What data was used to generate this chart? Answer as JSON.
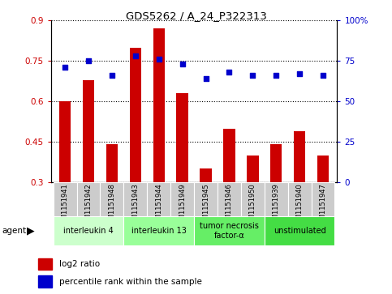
{
  "title": "GDS5262 / A_24_P322313",
  "samples": [
    "GSM1151941",
    "GSM1151942",
    "GSM1151948",
    "GSM1151943",
    "GSM1151944",
    "GSM1151949",
    "GSM1151945",
    "GSM1151946",
    "GSM1151950",
    "GSM1151939",
    "GSM1151940",
    "GSM1151947"
  ],
  "log2_ratio": [
    0.6,
    0.68,
    0.44,
    0.8,
    0.87,
    0.63,
    0.35,
    0.5,
    0.4,
    0.44,
    0.49,
    0.4
  ],
  "percentile": [
    71,
    75,
    66,
    78,
    76,
    73,
    64,
    68,
    66,
    66,
    67,
    66
  ],
  "ylim_left": [
    0.3,
    0.9
  ],
  "ylim_right": [
    0,
    100
  ],
  "yticks_left": [
    0.3,
    0.45,
    0.6,
    0.75,
    0.9
  ],
  "yticks_right": [
    0,
    25,
    50,
    75,
    100
  ],
  "ytick_labels_left": [
    "0.3",
    "0.45",
    "0.6",
    "0.75",
    "0.9"
  ],
  "ytick_labels_right": [
    "0",
    "25",
    "50",
    "75",
    "100%"
  ],
  "groups": [
    {
      "label": "interleukin 4",
      "start": 0,
      "end": 3,
      "color": "#ccffcc"
    },
    {
      "label": "interleukin 13",
      "start": 3,
      "end": 6,
      "color": "#99ff99"
    },
    {
      "label": "tumor necrosis\nfactor-α",
      "start": 6,
      "end": 9,
      "color": "#66ee66"
    },
    {
      "label": "unstimulated",
      "start": 9,
      "end": 12,
      "color": "#44dd44"
    }
  ],
  "bar_color": "#cc0000",
  "scatter_color": "#0000cc",
  "tick_label_color_left": "#cc0000",
  "tick_label_color_right": "#0000cc",
  "sample_bg_color": "#cccccc",
  "legend_log2": "log2 ratio",
  "legend_pct": "percentile rank within the sample",
  "agent_label": "agent"
}
